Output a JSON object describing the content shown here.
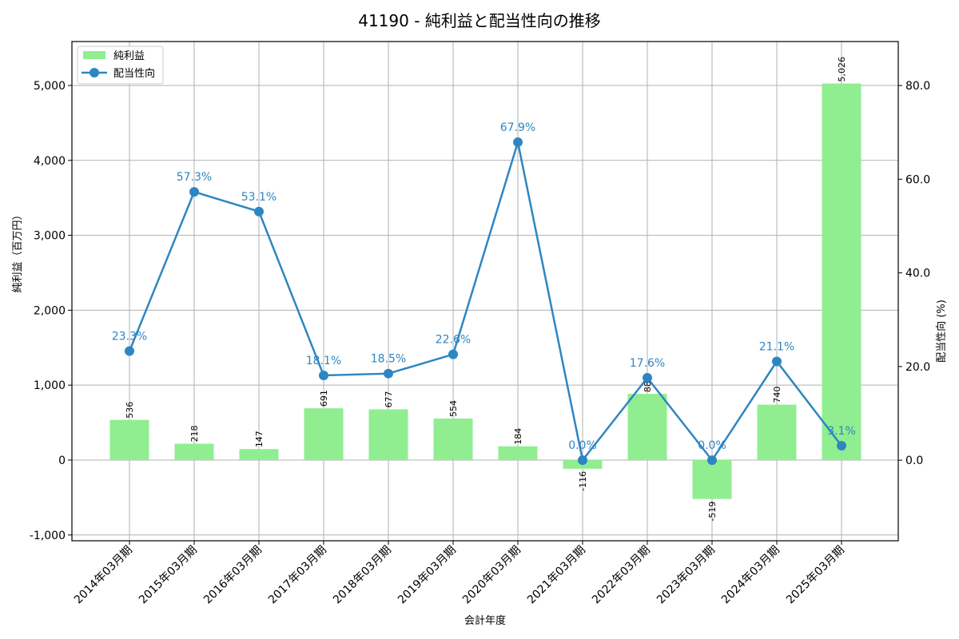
{
  "title": "41190 - 純利益と配当性向の推移",
  "chart_data": {
    "type": "bar+line",
    "title": "41190 - 純利益と配当性向の推移",
    "xlabel": "会計年度",
    "ylabel_left": "純利益（百万円）",
    "ylabel_right": "配当性向 (%)",
    "categories": [
      "2014年03月期",
      "2015年03月期",
      "2016年03月期",
      "2017年03月期",
      "2018年03月期",
      "2019年03月期",
      "2020年03月期",
      "2021年03月期",
      "2022年03月期",
      "2023年03月期",
      "2024年03月期",
      "2025年03月期"
    ],
    "series": [
      {
        "name": "純利益",
        "type": "bar",
        "axis": "left",
        "color": "#90ee90",
        "values": [
          536,
          218,
          147,
          691,
          677,
          554,
          184,
          -116,
          883,
          -519,
          740,
          5026
        ],
        "labels": [
          "536",
          "218",
          "147",
          "691",
          "677",
          "554",
          "184",
          "-116",
          "883",
          "-519",
          "740",
          "5,026"
        ]
      },
      {
        "name": "配当性向",
        "type": "line",
        "axis": "right",
        "color": "#2e86c1",
        "values": [
          23.3,
          57.3,
          53.1,
          18.1,
          18.5,
          22.6,
          67.9,
          0.0,
          17.6,
          0.0,
          21.1,
          3.1
        ],
        "labels": [
          "23.3%",
          "57.3%",
          "53.1%",
          "18.1%",
          "18.5%",
          "22.6%",
          "67.9%",
          "0.0%",
          "17.6%",
          "0.0%",
          "21.1%",
          "3.1%"
        ]
      }
    ],
    "ylim_left": [
      -1077,
      5586
    ],
    "ylim_right": [
      -17.2,
      89.4
    ],
    "yticks_left": [
      -1000,
      0,
      1000,
      2000,
      3000,
      4000,
      5000
    ],
    "yticks_left_labels": [
      "-1,000",
      "0",
      "1,000",
      "2,000",
      "3,000",
      "4,000",
      "5,000"
    ],
    "yticks_right": [
      0,
      20,
      40,
      60,
      80
    ],
    "yticks_right_labels": [
      "0.0",
      "20.0",
      "40.0",
      "60.0",
      "80.0"
    ],
    "grid": true,
    "legend": {
      "position": "upper left",
      "entries": [
        "純利益",
        "配当性向"
      ]
    }
  }
}
